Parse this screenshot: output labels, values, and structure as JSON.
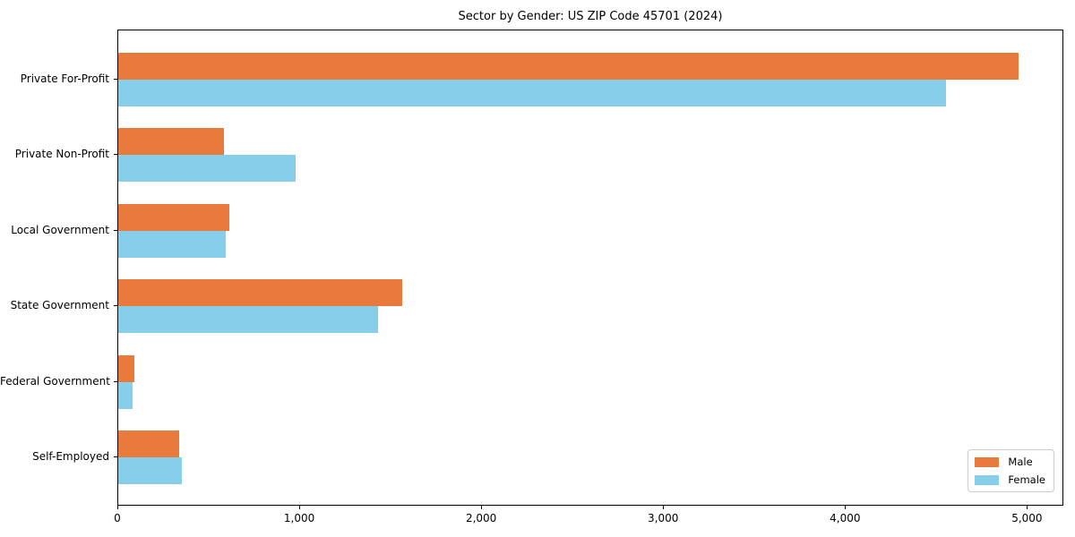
{
  "figure": {
    "title": "Sector by Gender: US ZIP Code 45701 (2024)"
  },
  "chart_data": {
    "type": "bar",
    "orientation": "horizontal",
    "title": "Sector by Gender: US ZIP Code 45701 (2024)",
    "categories": [
      "Private For-Profit",
      "Private Non-Profit",
      "Local Government",
      "State Government",
      "Federal Government",
      "Self-Employed"
    ],
    "series": [
      {
        "name": "Male",
        "color": "#e87b3c",
        "values": [
          4950,
          580,
          610,
          1560,
          90,
          335
        ]
      },
      {
        "name": "Female",
        "color": "#87ceeb",
        "values": [
          4550,
          975,
          590,
          1430,
          80,
          350
        ]
      }
    ],
    "xlabel": "",
    "ylabel": "",
    "xlim": [
      0,
      5200
    ],
    "ylim": [
      -0.65,
      5.65
    ],
    "xticks": [
      0,
      1000,
      2000,
      3000,
      4000,
      5000
    ],
    "xtick_labels": [
      "0",
      "1,000",
      "2,000",
      "3,000",
      "4,000",
      "5,000"
    ],
    "grid": false,
    "legend": {
      "position": "lower right",
      "entries": [
        "Male",
        "Female"
      ]
    }
  }
}
